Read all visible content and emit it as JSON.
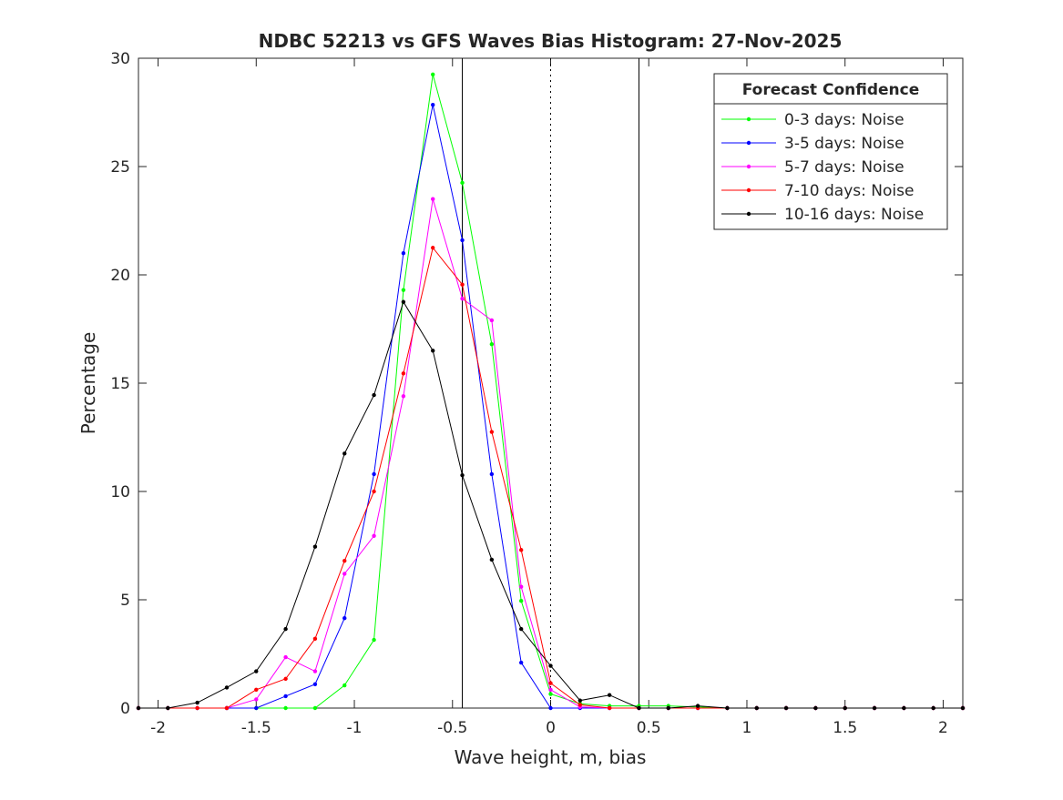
{
  "chart_data": {
    "type": "line",
    "title": "NDBC 52213 vs GFS Waves Bias Histogram: 27-Nov-2025",
    "xlabel": "Wave height, m, bias",
    "ylabel": "Percentage",
    "xlim": [
      -2.1,
      2.1
    ],
    "ylim": [
      0,
      30
    ],
    "xticks": [
      -2,
      -1.5,
      -1,
      -0.5,
      0,
      0.5,
      1,
      1.5,
      2
    ],
    "xtick_labels": [
      "-2",
      "-1.5",
      "-1",
      "-0.5",
      "0",
      "0.5",
      "1",
      "1.5",
      "2"
    ],
    "yticks": [
      0,
      5,
      10,
      15,
      20,
      25,
      30
    ],
    "ytick_labels": [
      "0",
      "5",
      "10",
      "15",
      "20",
      "25",
      "30"
    ],
    "grid": false,
    "legend_title": "Forecast Confidence",
    "legend_position": "top-right",
    "reference_lines": [
      {
        "x": -0.45,
        "style": "solid"
      },
      {
        "x": 0,
        "style": "dotted"
      },
      {
        "x": 0.45,
        "style": "solid"
      }
    ],
    "x": [
      -2.1,
      -1.95,
      -1.8,
      -1.65,
      -1.5,
      -1.35,
      -1.2,
      -1.05,
      -0.9,
      -0.75,
      -0.6,
      -0.45,
      -0.3,
      -0.15,
      0,
      0.15,
      0.3,
      0.45,
      0.6,
      0.75,
      0.9,
      1.05,
      1.2,
      1.35,
      1.5,
      1.65,
      1.8,
      1.95,
      2.1
    ],
    "series": [
      {
        "name": "0-3 days: Noise",
        "color": "#00ff00",
        "values": [
          0,
          0,
          0,
          0,
          0,
          0,
          0,
          1.05,
          3.15,
          19.3,
          29.25,
          24.25,
          16.8,
          4.95,
          0.65,
          0.2,
          0.1,
          0.1,
          0.1,
          0.05,
          0,
          0,
          0,
          0,
          0,
          0,
          0,
          0,
          0
        ]
      },
      {
        "name": "3-5 days: Noise",
        "color": "#0000ff",
        "values": [
          0,
          0,
          0,
          0,
          0,
          0.55,
          1.1,
          4.15,
          10.8,
          21.0,
          27.85,
          21.6,
          10.8,
          2.1,
          0,
          0,
          0,
          0,
          0,
          0,
          0,
          0,
          0,
          0,
          0,
          0,
          0,
          0,
          0
        ]
      },
      {
        "name": "5-7 days: Noise",
        "color": "#ff00ff",
        "values": [
          0,
          0,
          0,
          0,
          0.4,
          2.35,
          1.7,
          6.2,
          7.95,
          14.4,
          23.5,
          18.9,
          17.9,
          5.6,
          0.85,
          0.05,
          0,
          0,
          0,
          0,
          0,
          0,
          0,
          0,
          0,
          0,
          0,
          0,
          0
        ]
      },
      {
        "name": "7-10 days: Noise",
        "color": "#ff0000",
        "values": [
          0,
          0,
          0,
          0,
          0.85,
          1.35,
          3.2,
          6.8,
          10.0,
          15.45,
          21.25,
          19.55,
          12.75,
          7.3,
          1.15,
          0.15,
          0,
          0,
          0,
          0,
          0,
          0,
          0,
          0,
          0,
          0,
          0,
          0,
          0
        ]
      },
      {
        "name": "10-16 days: Noise",
        "color": "#000000",
        "values": [
          0,
          0,
          0.25,
          0.95,
          1.7,
          3.65,
          7.45,
          11.75,
          14.45,
          18.75,
          16.5,
          10.75,
          6.85,
          3.65,
          1.95,
          0.35,
          0.6,
          0,
          0,
          0.1,
          0,
          0,
          0,
          0,
          0,
          0,
          0,
          0,
          0
        ]
      }
    ]
  }
}
